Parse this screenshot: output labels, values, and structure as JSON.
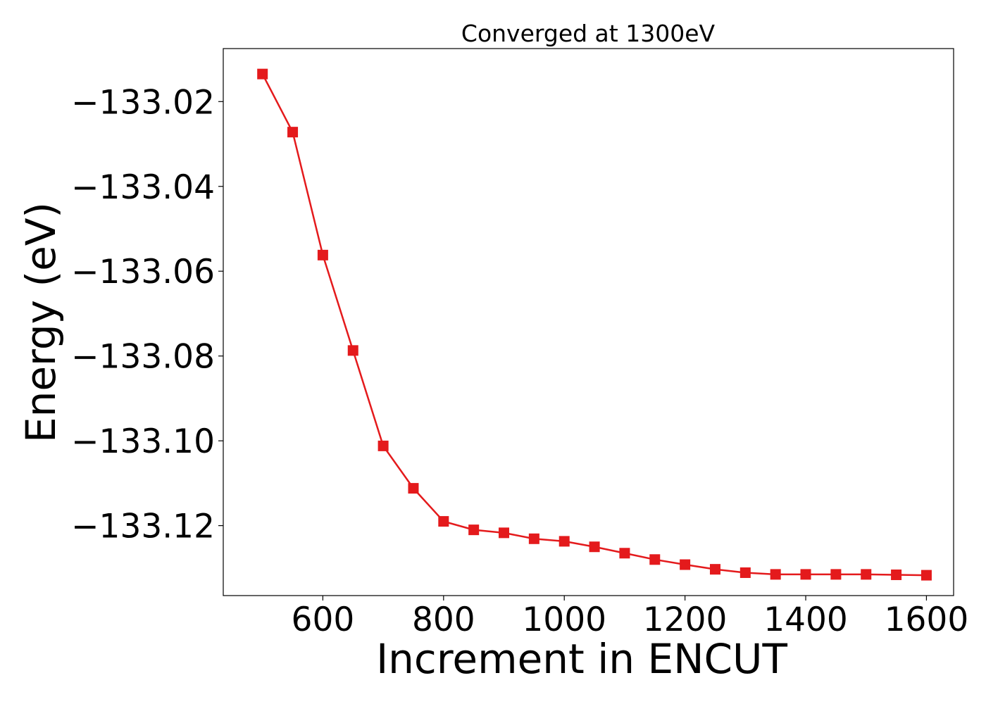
{
  "chart_data": {
    "type": "line",
    "title": "Converged at 1300eV",
    "xlabel": "Increment in ENCUT",
    "ylabel": "Energy (eV)",
    "xlim": [
      435,
      1645
    ],
    "ylim": [
      -133.1365,
      -133.0075
    ],
    "xticks": [
      600,
      800,
      1000,
      1200,
      1400,
      1600
    ],
    "xtick_labels": [
      "600",
      "800",
      "1000",
      "1200",
      "1400",
      "1600"
    ],
    "yticks": [
      -133.02,
      -133.04,
      -133.06,
      -133.08,
      -133.1,
      -133.12
    ],
    "ytick_labels": [
      "−133.02",
      "−133.04",
      "−133.06",
      "−133.08",
      "−133.10",
      "−133.12"
    ],
    "grid": false,
    "series": [
      {
        "name": "Energy",
        "color": "#e41a1c",
        "marker": "square",
        "x": [
          500,
          550,
          600,
          650,
          700,
          750,
          800,
          850,
          900,
          950,
          1000,
          1050,
          1100,
          1150,
          1200,
          1250,
          1300,
          1350,
          1400,
          1450,
          1500,
          1550,
          1600
        ],
        "y": [
          -133.0135,
          -133.0272,
          -133.0562,
          -133.0787,
          -133.1012,
          -133.1112,
          -133.119,
          -133.121,
          -133.1217,
          -133.1231,
          -133.1237,
          -133.125,
          -133.1265,
          -133.128,
          -133.1292,
          -133.1303,
          -133.1311,
          -133.1315,
          -133.1315,
          -133.1315,
          -133.1315,
          -133.1316,
          -133.1317
        ]
      }
    ]
  }
}
